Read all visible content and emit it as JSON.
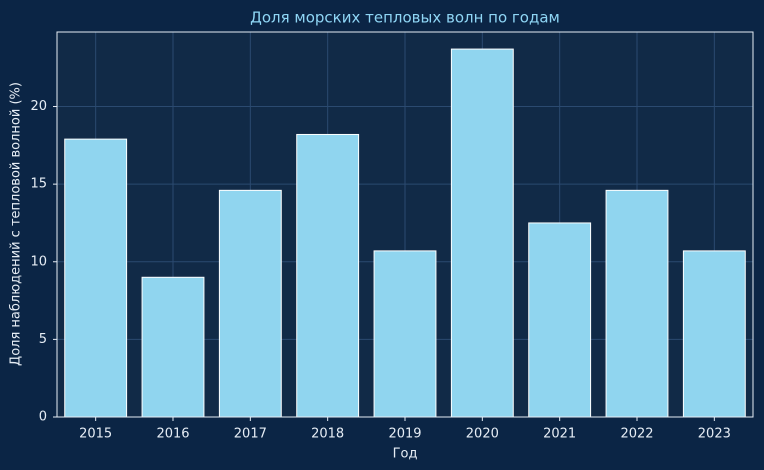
{
  "chart_data": {
    "type": "bar",
    "title": "Доля морских тепловых волн по годам",
    "x_label": "Год",
    "y_label": "Доля наблюдений с тепловой волной (%)",
    "categories": [
      "2015",
      "2016",
      "2017",
      "2018",
      "2019",
      "2020",
      "2021",
      "2022",
      "2023"
    ],
    "values": [
      17.9,
      9.0,
      14.6,
      18.2,
      10.7,
      23.7,
      12.5,
      14.6,
      10.7
    ],
    "color": "#90d5ef",
    "ylim": [
      0,
      24.8
    ],
    "yticks": [
      0,
      5,
      10,
      15,
      20
    ],
    "grid": true
  }
}
